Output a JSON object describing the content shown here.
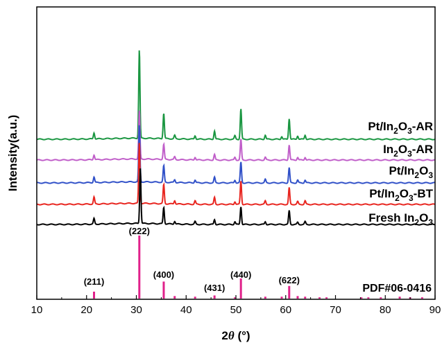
{
  "chart_data": {
    "type": "line",
    "title": "",
    "xlabel": "2θ (°)",
    "ylabel": "Intensity(a.u.)",
    "xlim": [
      10,
      90
    ],
    "xticks": [
      "10",
      "20",
      "30",
      "40",
      "50",
      "60",
      "70",
      "80",
      "90"
    ],
    "yticks_shown": false,
    "series": [
      {
        "name": "Pt/In2O3-AR",
        "label_parts": [
          "Pt/In",
          "2",
          "O",
          "3",
          "-AR"
        ],
        "color": "#1a9641",
        "peaks": [
          [
            21.5,
            9
          ],
          [
            30.6,
            128
          ],
          [
            35.5,
            37
          ],
          [
            37.7,
            5
          ],
          [
            41.8,
            5
          ],
          [
            45.7,
            12
          ],
          [
            49.8,
            5
          ],
          [
            51.0,
            44
          ],
          [
            55.9,
            6
          ],
          [
            59.2,
            4
          ],
          [
            60.7,
            30
          ],
          [
            62.4,
            5
          ],
          [
            63.9,
            6
          ]
        ]
      },
      {
        "name": "In2O3-AR",
        "label_parts": [
          "In",
          "2",
          "O",
          "3",
          "-AR"
        ],
        "color": "#c05ec9",
        "peaks": [
          [
            21.5,
            7
          ],
          [
            30.6,
            70
          ],
          [
            35.5,
            22
          ],
          [
            37.7,
            4
          ],
          [
            41.8,
            4
          ],
          [
            45.7,
            8
          ],
          [
            49.8,
            4
          ],
          [
            51.0,
            30
          ],
          [
            55.9,
            4
          ],
          [
            60.7,
            22
          ],
          [
            62.4,
            4
          ],
          [
            63.9,
            4
          ]
        ]
      },
      {
        "name": "Pt/In2O3",
        "label_parts": [
          "Pt/In",
          "2",
          "O",
          "3",
          ""
        ],
        "color": "#3050c8",
        "peaks": [
          [
            21.5,
            8
          ],
          [
            30.6,
            82
          ],
          [
            35.5,
            24
          ],
          [
            37.7,
            4
          ],
          [
            41.8,
            4
          ],
          [
            45.7,
            8
          ],
          [
            49.8,
            4
          ],
          [
            51.0,
            30
          ],
          [
            55.9,
            5
          ],
          [
            60.7,
            22
          ],
          [
            62.4,
            4
          ],
          [
            63.9,
            4
          ]
        ]
      },
      {
        "name": "Pt/In2O3-BT",
        "label_parts": [
          "Pt/In",
          "2",
          "O",
          "3",
          "-BT"
        ],
        "color": "#e8251f",
        "peaks": [
          [
            21.5,
            10
          ],
          [
            30.6,
            88
          ],
          [
            35.5,
            28
          ],
          [
            37.7,
            5
          ],
          [
            41.8,
            5
          ],
          [
            45.7,
            10
          ],
          [
            49.8,
            4
          ],
          [
            51.0,
            34
          ],
          [
            55.9,
            5
          ],
          [
            60.7,
            24
          ],
          [
            62.4,
            4
          ],
          [
            63.9,
            5
          ]
        ]
      },
      {
        "name": "Fresh In2O3",
        "label_parts": [
          "Fresh In",
          "2",
          "O",
          "3",
          ""
        ],
        "color": "#000000",
        "peaks": [
          [
            21.5,
            8
          ],
          [
            30.8,
            80
          ],
          [
            35.5,
            24
          ],
          [
            37.7,
            4
          ],
          [
            41.8,
            4
          ],
          [
            45.7,
            7
          ],
          [
            49.8,
            4
          ],
          [
            51.0,
            26
          ],
          [
            55.9,
            4
          ],
          [
            60.7,
            20
          ],
          [
            62.4,
            3
          ],
          [
            63.9,
            4
          ]
        ]
      }
    ],
    "reference": {
      "name": "PDF#06-0416",
      "color": "#e0218a",
      "lines": [
        [
          21.5,
          0.11
        ],
        [
          30.6,
          1.0
        ],
        [
          35.5,
          0.27
        ],
        [
          37.7,
          0.04
        ],
        [
          41.8,
          0.03
        ],
        [
          45.7,
          0.05
        ],
        [
          49.8,
          0.02
        ],
        [
          51.0,
          0.32
        ],
        [
          55.9,
          0.03
        ],
        [
          59.2,
          0.03
        ],
        [
          60.7,
          0.2
        ],
        [
          62.4,
          0.04
        ],
        [
          63.9,
          0.03
        ],
        [
          66.8,
          0.02
        ],
        [
          68.2,
          0.02
        ],
        [
          75.2,
          0.02
        ],
        [
          76.6,
          0.02
        ],
        [
          79.1,
          0.02
        ],
        [
          82.9,
          0.03
        ],
        [
          85.0,
          0.02
        ],
        [
          87.4,
          0.02
        ]
      ],
      "labels": [
        {
          "text": "(211)",
          "x": 21.5
        },
        {
          "text": "(222)",
          "x": 30.6
        },
        {
          "text": "(400)",
          "x": 35.5
        },
        {
          "text": "(431)",
          "x": 45.7
        },
        {
          "text": "(440)",
          "x": 51.0
        },
        {
          "text": "(622)",
          "x": 60.7
        }
      ]
    }
  }
}
